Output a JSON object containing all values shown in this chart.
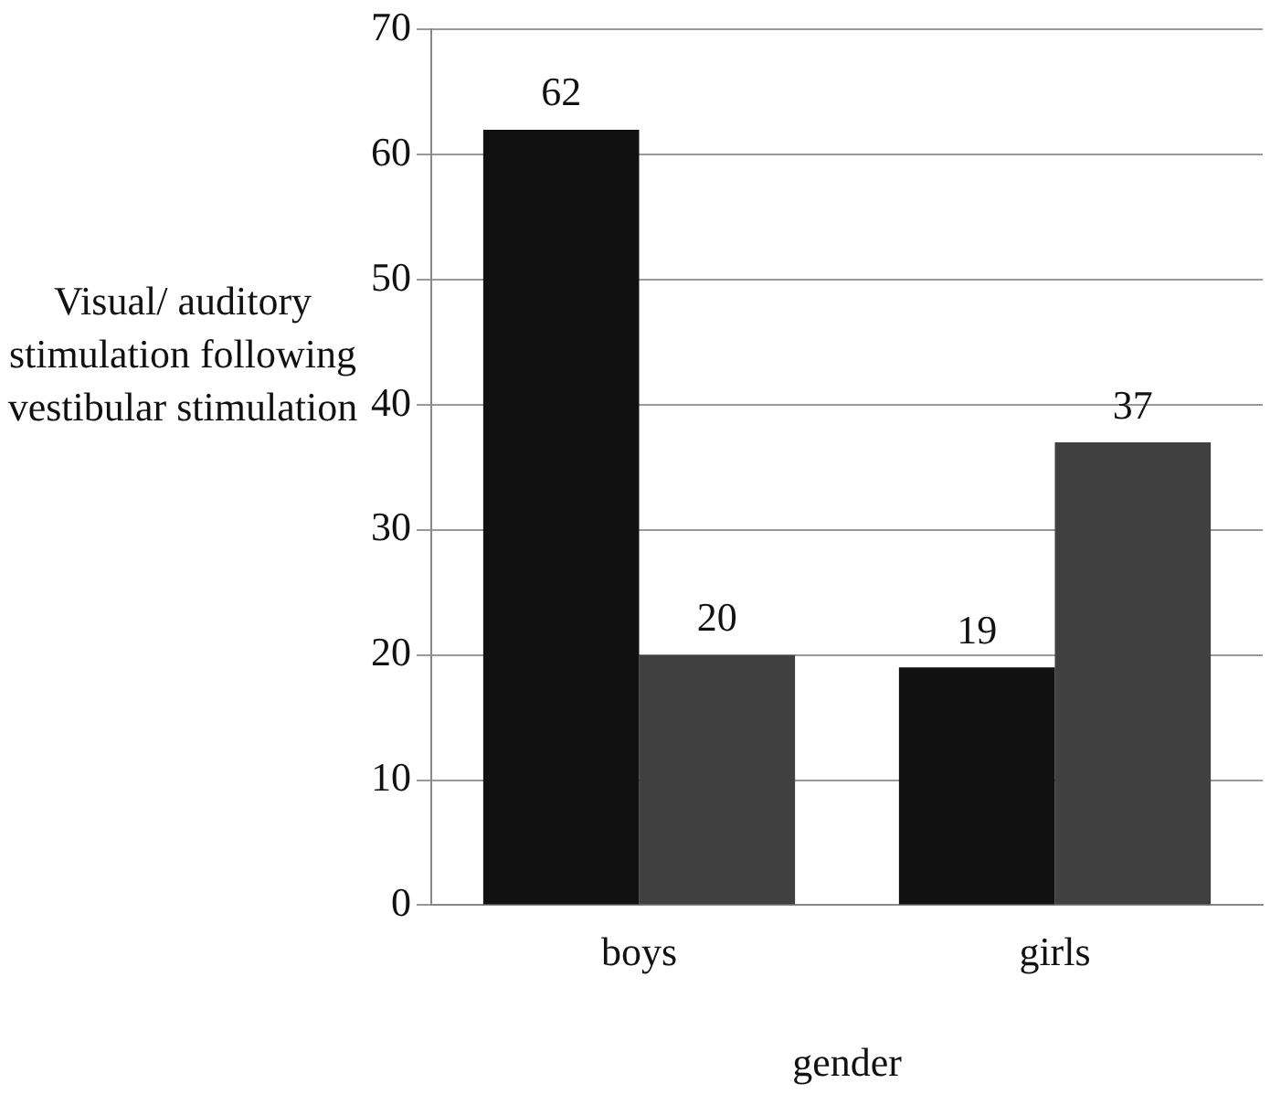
{
  "chart_data": {
    "type": "bar",
    "xlabel": "gender",
    "ylabel": "Visual/ auditory stimulation following vestibular stimulation",
    "categories": [
      "boys",
      "girls"
    ],
    "series": [
      {
        "color": "#111111",
        "values": [
          62,
          19
        ]
      },
      {
        "color": "#404040",
        "values": [
          20,
          37
        ]
      }
    ],
    "ylim": [
      0,
      70
    ],
    "yticks": [
      0,
      10,
      20,
      30,
      40,
      50,
      60,
      70
    ],
    "grid": "y",
    "legend": false,
    "data_labels": true
  }
}
